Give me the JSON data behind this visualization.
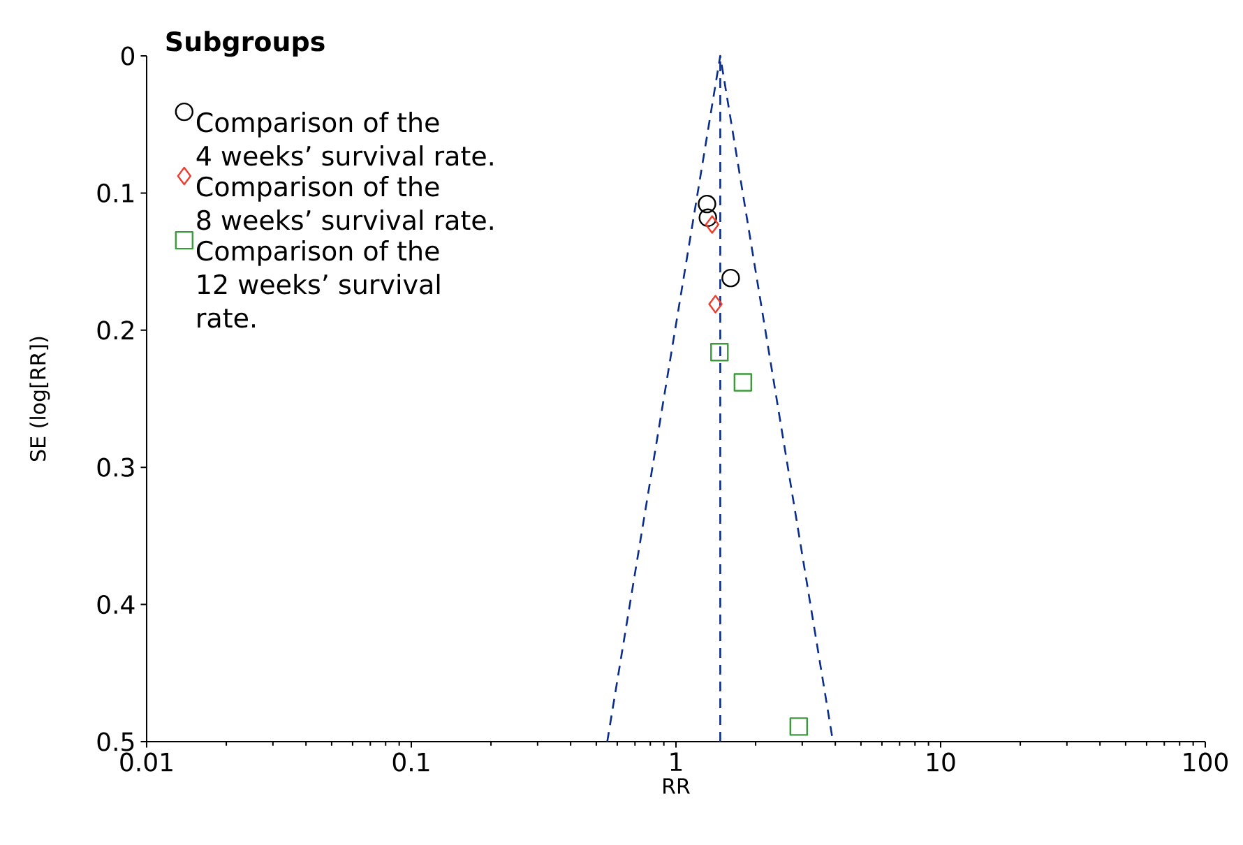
{
  "chart_data": {
    "type": "scatter",
    "xlabel": "RR",
    "ylabel": "SE (log[RR])",
    "legend_title": "Subgroups",
    "legend": "top left",
    "log": "x",
    "xlim": [
      0.01,
      100
    ],
    "ylim": [
      0.5,
      0
    ],
    "xticks": [
      0.01,
      0.1,
      1,
      10,
      100
    ],
    "yticks": [
      0,
      0.1,
      0.2,
      0.3,
      0.4,
      0.5
    ],
    "series": [
      {
        "name": "Comparison of the 4 weeks’ survival rate.",
        "color": "#000000",
        "marker": "circle",
        "x": [
          1.31,
          1.32,
          1.61
        ],
        "values": [
          0.108,
          0.118,
          0.162
        ]
      },
      {
        "name": "Comparison of the 8 weeks’ survival rate.",
        "color": "#f03c2c",
        "marker": "diamond",
        "x": [
          1.37,
          1.41
        ],
        "values": [
          0.123,
          0.181
        ]
      },
      {
        "name": "Comparison of the 12 weeks’ survival rate.",
        "color": "#3c9a3c",
        "marker": "square",
        "x": [
          1.46,
          1.79,
          2.91
        ],
        "values": [
          0.216,
          0.238,
          0.489
        ]
      },
      {
        "type": "line",
        "color": "#0a2c8c",
        "line_style": "dashed",
        "marker": "none",
        "x": [
          0.55,
          1.47,
          3.92
        ],
        "values": [
          0.5,
          0,
          0.5
        ]
      }
    ],
    "ref_lines": [
      {
        "axis": "x",
        "value": 1.47,
        "color": "#0a2c8c",
        "line_style": "dashed"
      }
    ]
  }
}
